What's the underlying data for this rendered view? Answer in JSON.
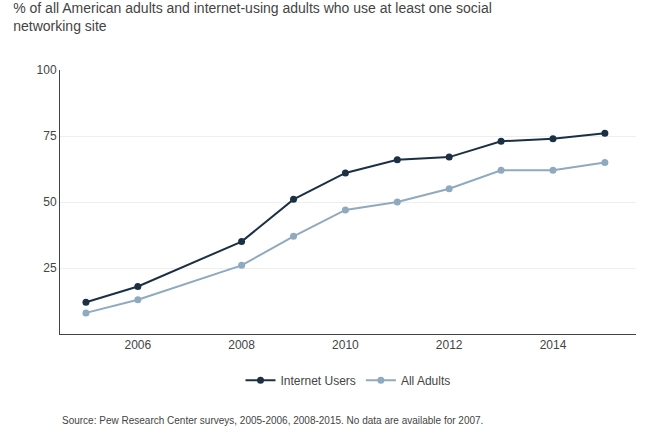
{
  "chart_data": {
    "type": "line",
    "title": "% of all American adults and internet-using adults who use at least one social networking site",
    "source": "Source: Pew Research Center surveys, 2005-2006, 2008-2015. No data are available for 2007.",
    "series": [
      {
        "name": "Internet Users",
        "color": "#1c3045",
        "marker": "circle",
        "x": [
          2005,
          2006,
          2008,
          2009,
          2010,
          2011,
          2012,
          2013,
          2014,
          2015
        ],
        "values": [
          12,
          18,
          35,
          51,
          61,
          66,
          67,
          73,
          74,
          76
        ]
      },
      {
        "name": "All Adults",
        "color": "#8faabf",
        "marker": "circle",
        "x": [
          2005,
          2006,
          2008,
          2009,
          2010,
          2011,
          2012,
          2013,
          2014,
          2015
        ],
        "values": [
          8,
          13,
          26,
          37,
          47,
          50,
          55,
          62,
          62,
          65
        ]
      }
    ],
    "xlim": [
      2004.5,
      2015.6
    ],
    "xticks": [
      2006,
      2008,
      2010,
      2012,
      2014
    ],
    "ylim": [
      0,
      100
    ],
    "yticks": [
      25,
      50,
      75,
      100
    ],
    "grid": true
  }
}
